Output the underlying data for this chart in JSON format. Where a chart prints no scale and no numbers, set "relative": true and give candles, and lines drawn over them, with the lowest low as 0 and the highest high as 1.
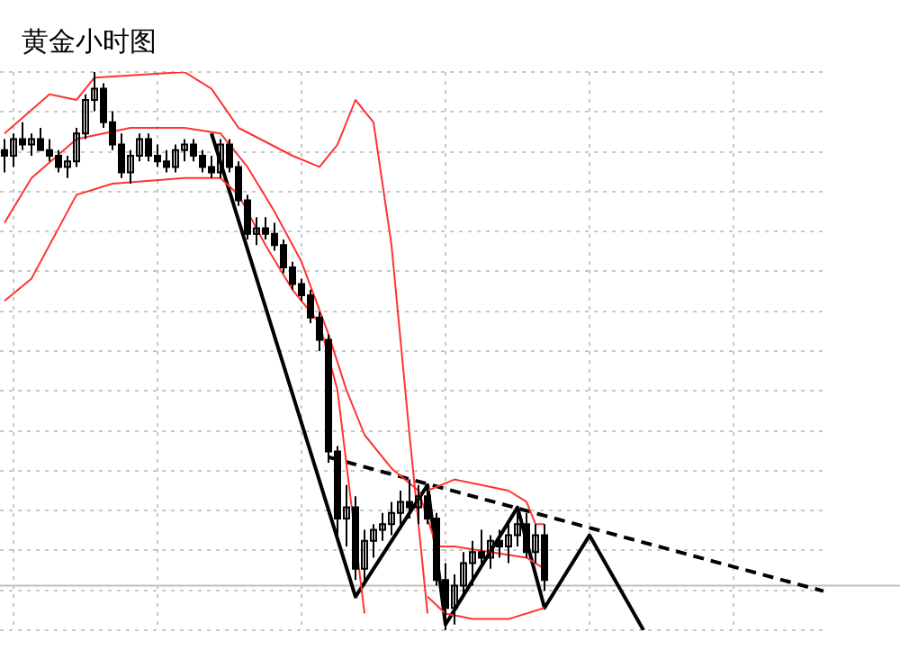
{
  "chart_data": {
    "type": "candlestick",
    "title": "黄金小时图",
    "relative": true,
    "grid": true,
    "marker": "none",
    "categories": [
      null,
      null,
      null,
      null,
      null,
      null,
      null,
      null,
      null,
      null,
      null,
      null,
      null,
      null,
      null,
      null,
      null,
      null,
      null,
      null,
      null,
      null,
      null,
      null,
      null,
      null,
      null,
      null,
      null,
      null,
      null,
      null,
      null,
      null,
      null,
      null,
      null,
      null,
      null,
      null,
      null,
      null,
      null,
      null,
      null,
      null,
      null,
      null,
      null,
      null,
      null,
      null,
      null,
      null,
      null,
      null,
      null,
      null,
      null,
      null,
      null,
      null,
      null,
      null,
      null,
      null,
      null,
      null,
      null,
      null,
      null,
      null,
      null,
      null,
      null,
      null,
      null,
      null,
      null,
      null,
      null,
      null,
      null,
      null,
      null,
      null,
      null,
      null,
      null,
      null,
      null,
      null
    ],
    "color": "#000000",
    "ohlc": [
      [
        0.86,
        0.88,
        0.82,
        0.85
      ],
      [
        0.85,
        0.89,
        0.83,
        0.88
      ],
      [
        0.88,
        0.91,
        0.86,
        0.87
      ],
      [
        0.87,
        0.89,
        0.85,
        0.88
      ],
      [
        0.88,
        0.9,
        0.86,
        0.86
      ],
      [
        0.86,
        0.88,
        0.84,
        0.85
      ],
      [
        0.85,
        0.86,
        0.82,
        0.83
      ],
      [
        0.83,
        0.85,
        0.81,
        0.84
      ],
      [
        0.84,
        0.9,
        0.83,
        0.89
      ],
      [
        0.89,
        0.96,
        0.88,
        0.95
      ],
      [
        0.95,
        1,
        0.93,
        0.97
      ],
      [
        0.97,
        0.98,
        0.9,
        0.91
      ],
      [
        0.91,
        0.93,
        0.86,
        0.87
      ],
      [
        0.87,
        0.89,
        0.81,
        0.82
      ],
      [
        0.82,
        0.86,
        0.8,
        0.85
      ],
      [
        0.85,
        0.89,
        0.84,
        0.88
      ],
      [
        0.88,
        0.89,
        0.84,
        0.85
      ],
      [
        0.85,
        0.87,
        0.83,
        0.84
      ],
      [
        0.84,
        0.86,
        0.82,
        0.83
      ],
      [
        0.83,
        0.87,
        0.82,
        0.86
      ],
      [
        0.86,
        0.88,
        0.84,
        0.87
      ],
      [
        0.87,
        0.88,
        0.84,
        0.85
      ],
      [
        0.85,
        0.86,
        0.82,
        0.83
      ],
      [
        0.83,
        0.85,
        0.81,
        0.82
      ],
      [
        0.82,
        0.88,
        0.81,
        0.87
      ],
      [
        0.87,
        0.88,
        0.82,
        0.83
      ],
      [
        0.83,
        0.84,
        0.76,
        0.77
      ],
      [
        0.77,
        0.78,
        0.7,
        0.71
      ],
      [
        0.71,
        0.74,
        0.69,
        0.72
      ],
      [
        0.72,
        0.74,
        0.7,
        0.71
      ],
      [
        0.71,
        0.73,
        0.68,
        0.69
      ],
      [
        0.69,
        0.7,
        0.64,
        0.65
      ],
      [
        0.65,
        0.66,
        0.61,
        0.62
      ],
      [
        0.62,
        0.63,
        0.59,
        0.6
      ],
      [
        0.6,
        0.61,
        0.55,
        0.56
      ],
      [
        0.56,
        0.57,
        0.5,
        0.52
      ],
      [
        0.52,
        0.53,
        0.3,
        0.32
      ],
      [
        0.32,
        0.33,
        0.17,
        0.2
      ],
      [
        0.2,
        0.26,
        0.15,
        0.22
      ],
      [
        0.22,
        0.24,
        0.09,
        0.11
      ],
      [
        0.11,
        0.18,
        0.08,
        0.16
      ],
      [
        0.16,
        0.19,
        0.13,
        0.18
      ],
      [
        0.18,
        0.21,
        0.16,
        0.19
      ],
      [
        0.19,
        0.23,
        0.17,
        0.21
      ],
      [
        0.21,
        0.25,
        0.19,
        0.23
      ],
      [
        0.23,
        0.27,
        0.2,
        0.22
      ],
      [
        0.22,
        0.26,
        0.19,
        0.24
      ],
      [
        0.24,
        0.26,
        0.19,
        0.2
      ],
      [
        0.2,
        0.21,
        0.08,
        0.09
      ],
      [
        0.09,
        0.12,
        0,
        0.04
      ],
      [
        0.04,
        0.1,
        0.01,
        0.08
      ],
      [
        0.08,
        0.14,
        0.06,
        0.12
      ],
      [
        0.12,
        0.16,
        0.08,
        0.14
      ],
      [
        0.14,
        0.18,
        0.12,
        0.13
      ],
      [
        0.13,
        0.17,
        0.11,
        0.16
      ],
      [
        0.16,
        0.18,
        0.13,
        0.15
      ],
      [
        0.15,
        0.19,
        0.12,
        0.17
      ],
      [
        0.17,
        0.21,
        0.15,
        0.19
      ],
      [
        0.19,
        0.21,
        0.13,
        0.14
      ],
      [
        0.14,
        0.19,
        0.12,
        0.17
      ],
      [
        0.17,
        0.19,
        0.07,
        0.09
      ],
      null,
      null,
      null,
      null,
      null,
      null,
      null,
      null,
      null,
      null,
      null,
      null,
      null,
      null,
      null,
      null,
      null,
      null,
      null,
      null,
      null,
      null,
      null,
      null,
      null,
      null,
      null,
      null,
      null,
      null,
      null
    ],
    "series": [
      {
        "type": "line",
        "color": "#ff3333",
        "values": [
          0.89,
          null,
          null,
          null,
          null,
          0.96,
          null,
          null,
          0.95,
          null,
          0.99,
          null,
          null,
          null,
          null,
          null,
          null,
          null,
          null,
          null,
          1,
          null,
          null,
          0.97,
          null,
          null,
          0.9,
          null,
          null,
          null,
          null,
          null,
          0.85,
          null,
          null,
          0.83,
          null,
          0.87,
          null,
          0.95,
          null,
          0.91,
          null,
          0.69,
          null,
          0.35,
          null,
          0.03,
          null,
          null,
          null,
          null,
          null,
          null,
          null,
          null,
          null,
          null,
          null,
          null,
          null,
          null,
          null,
          null,
          null,
          null,
          null,
          null,
          null,
          null,
          null,
          null,
          null,
          null,
          null,
          null,
          null,
          null,
          null,
          null,
          null,
          null,
          null,
          null,
          null,
          null,
          null,
          null,
          null,
          null,
          null,
          null
        ]
      },
      {
        "type": "line",
        "color": "#ff3333",
        "values": [
          null,
          null,
          null,
          null,
          null,
          null,
          null,
          null,
          null,
          null,
          null,
          null,
          null,
          null,
          null,
          null,
          null,
          null,
          null,
          null,
          null,
          null,
          null,
          null,
          null,
          null,
          null,
          null,
          null,
          null,
          null,
          null,
          null,
          null,
          null,
          null,
          null,
          null,
          null,
          null,
          null,
          null,
          null,
          null,
          null,
          null,
          null,
          0.25,
          null,
          null,
          0.27,
          null,
          null,
          0.26,
          null,
          null,
          0.25,
          null,
          0.23,
          0.19,
          0.19,
          null,
          null,
          null,
          null,
          null,
          null,
          null,
          null,
          null,
          null,
          null,
          null,
          null,
          null,
          null,
          null,
          null,
          null,
          null,
          null,
          null,
          null,
          null,
          null,
          null,
          null,
          null,
          null,
          null,
          null,
          null
        ]
      },
      {
        "type": "line",
        "color": "#ff3333",
        "values": [
          0.73,
          null,
          null,
          0.81,
          null,
          null,
          null,
          null,
          0.88,
          null,
          null,
          null,
          null,
          null,
          0.9,
          null,
          null,
          null,
          null,
          null,
          0.9,
          null,
          null,
          null,
          0.89,
          null,
          null,
          0.83,
          null,
          null,
          0.75,
          null,
          null,
          0.66,
          null,
          null,
          0.53,
          null,
          0.43,
          null,
          0.35,
          null,
          null,
          0.29,
          null,
          null,
          0.25,
          null,
          0.15,
          null,
          0.15,
          null,
          null,
          null,
          0.14,
          null,
          null,
          null,
          0.13,
          null,
          0.11,
          null,
          null,
          null,
          null,
          null,
          null,
          null,
          null,
          null,
          null,
          null,
          null,
          null,
          null,
          null,
          null,
          null,
          null,
          null,
          null,
          null,
          null,
          null,
          null,
          null,
          null,
          null,
          null,
          null,
          null,
          null
        ]
      },
      {
        "type": "line",
        "color": "#ff3333",
        "values": [
          0.59,
          null,
          null,
          0.63,
          null,
          null,
          0.72,
          null,
          0.78,
          null,
          null,
          null,
          0.8,
          null,
          null,
          null,
          null,
          null,
          null,
          null,
          0.81,
          null,
          null,
          null,
          0.81,
          null,
          0.78,
          null,
          null,
          0.69,
          null,
          null,
          0.61,
          null,
          null,
          0.55,
          null,
          0.43,
          null,
          null,
          0.03,
          null,
          null,
          null,
          null,
          null,
          null,
          null,
          null,
          null,
          null,
          null,
          null,
          null,
          null,
          null,
          null,
          null,
          null,
          null,
          null,
          null,
          null,
          null,
          null,
          null,
          null,
          null,
          null,
          null,
          null,
          null,
          null,
          null,
          null,
          null,
          null,
          null,
          null,
          null,
          null,
          null,
          null,
          null,
          null,
          null,
          null,
          null,
          null,
          null,
          null,
          null
        ]
      },
      {
        "type": "line",
        "color": "#ff3333",
        "values": [
          null,
          null,
          null,
          null,
          null,
          null,
          null,
          null,
          null,
          null,
          null,
          null,
          null,
          null,
          null,
          null,
          null,
          null,
          null,
          null,
          null,
          null,
          null,
          null,
          null,
          null,
          null,
          null,
          null,
          null,
          null,
          null,
          null,
          null,
          null,
          null,
          null,
          null,
          null,
          null,
          null,
          null,
          null,
          null,
          null,
          null,
          null,
          0.06,
          null,
          0.03,
          null,
          null,
          0.02,
          null,
          null,
          null,
          0.02,
          null,
          null,
          null,
          0.04,
          null,
          null,
          null,
          null,
          null,
          null,
          null,
          null,
          null,
          null,
          null,
          null,
          null,
          null,
          null,
          null,
          null,
          null,
          null,
          null,
          null,
          null,
          null,
          null,
          null,
          null,
          null,
          null,
          null,
          null,
          null
        ]
      },
      {
        "type": "line",
        "color": "#000000",
        "line_style": "solid",
        "values": [
          null,
          null,
          null,
          null,
          null,
          null,
          null,
          null,
          null,
          null,
          null,
          null,
          null,
          null,
          null,
          null,
          null,
          null,
          null,
          null,
          null,
          null,
          null,
          0.89,
          null,
          null,
          null,
          null,
          null,
          null,
          null,
          null,
          null,
          null,
          null,
          null,
          null,
          null,
          null,
          0.06,
          null,
          null,
          null,
          null,
          null,
          null,
          null,
          0.26,
          null,
          0.01,
          null,
          null,
          null,
          null,
          null,
          null,
          null,
          0.22,
          null,
          null,
          0.04,
          null,
          null,
          null,
          null,
          0.17,
          null,
          null,
          null,
          null,
          null,
          0,
          null,
          null,
          null,
          null,
          null,
          null,
          null,
          null,
          null,
          null,
          null,
          null,
          null,
          null,
          null,
          null,
          null,
          null,
          null,
          null
        ]
      },
      {
        "type": "line",
        "color": "#000000",
        "line_style": "dashed",
        "values": [
          null,
          null,
          null,
          null,
          null,
          null,
          null,
          null,
          null,
          null,
          null,
          null,
          null,
          null,
          null,
          null,
          null,
          null,
          null,
          null,
          null,
          null,
          null,
          null,
          null,
          null,
          null,
          null,
          null,
          null,
          null,
          null,
          null,
          null,
          null,
          null,
          0.31,
          null,
          null,
          null,
          null,
          null,
          null,
          null,
          null,
          null,
          null,
          null,
          null,
          null,
          null,
          null,
          null,
          null,
          null,
          null,
          null,
          null,
          null,
          null,
          null,
          null,
          null,
          null,
          null,
          null,
          null,
          null,
          null,
          null,
          null,
          null,
          null,
          null,
          null,
          null,
          null,
          null,
          null,
          null,
          null,
          null,
          null,
          null,
          null,
          null,
          null,
          null,
          null,
          null,
          null,
          0.07
        ]
      }
    ],
    "ref_lines": [
      {
        "axis": "y",
        "value": 0.08,
        "color": "#c0c0c0"
      }
    ]
  }
}
